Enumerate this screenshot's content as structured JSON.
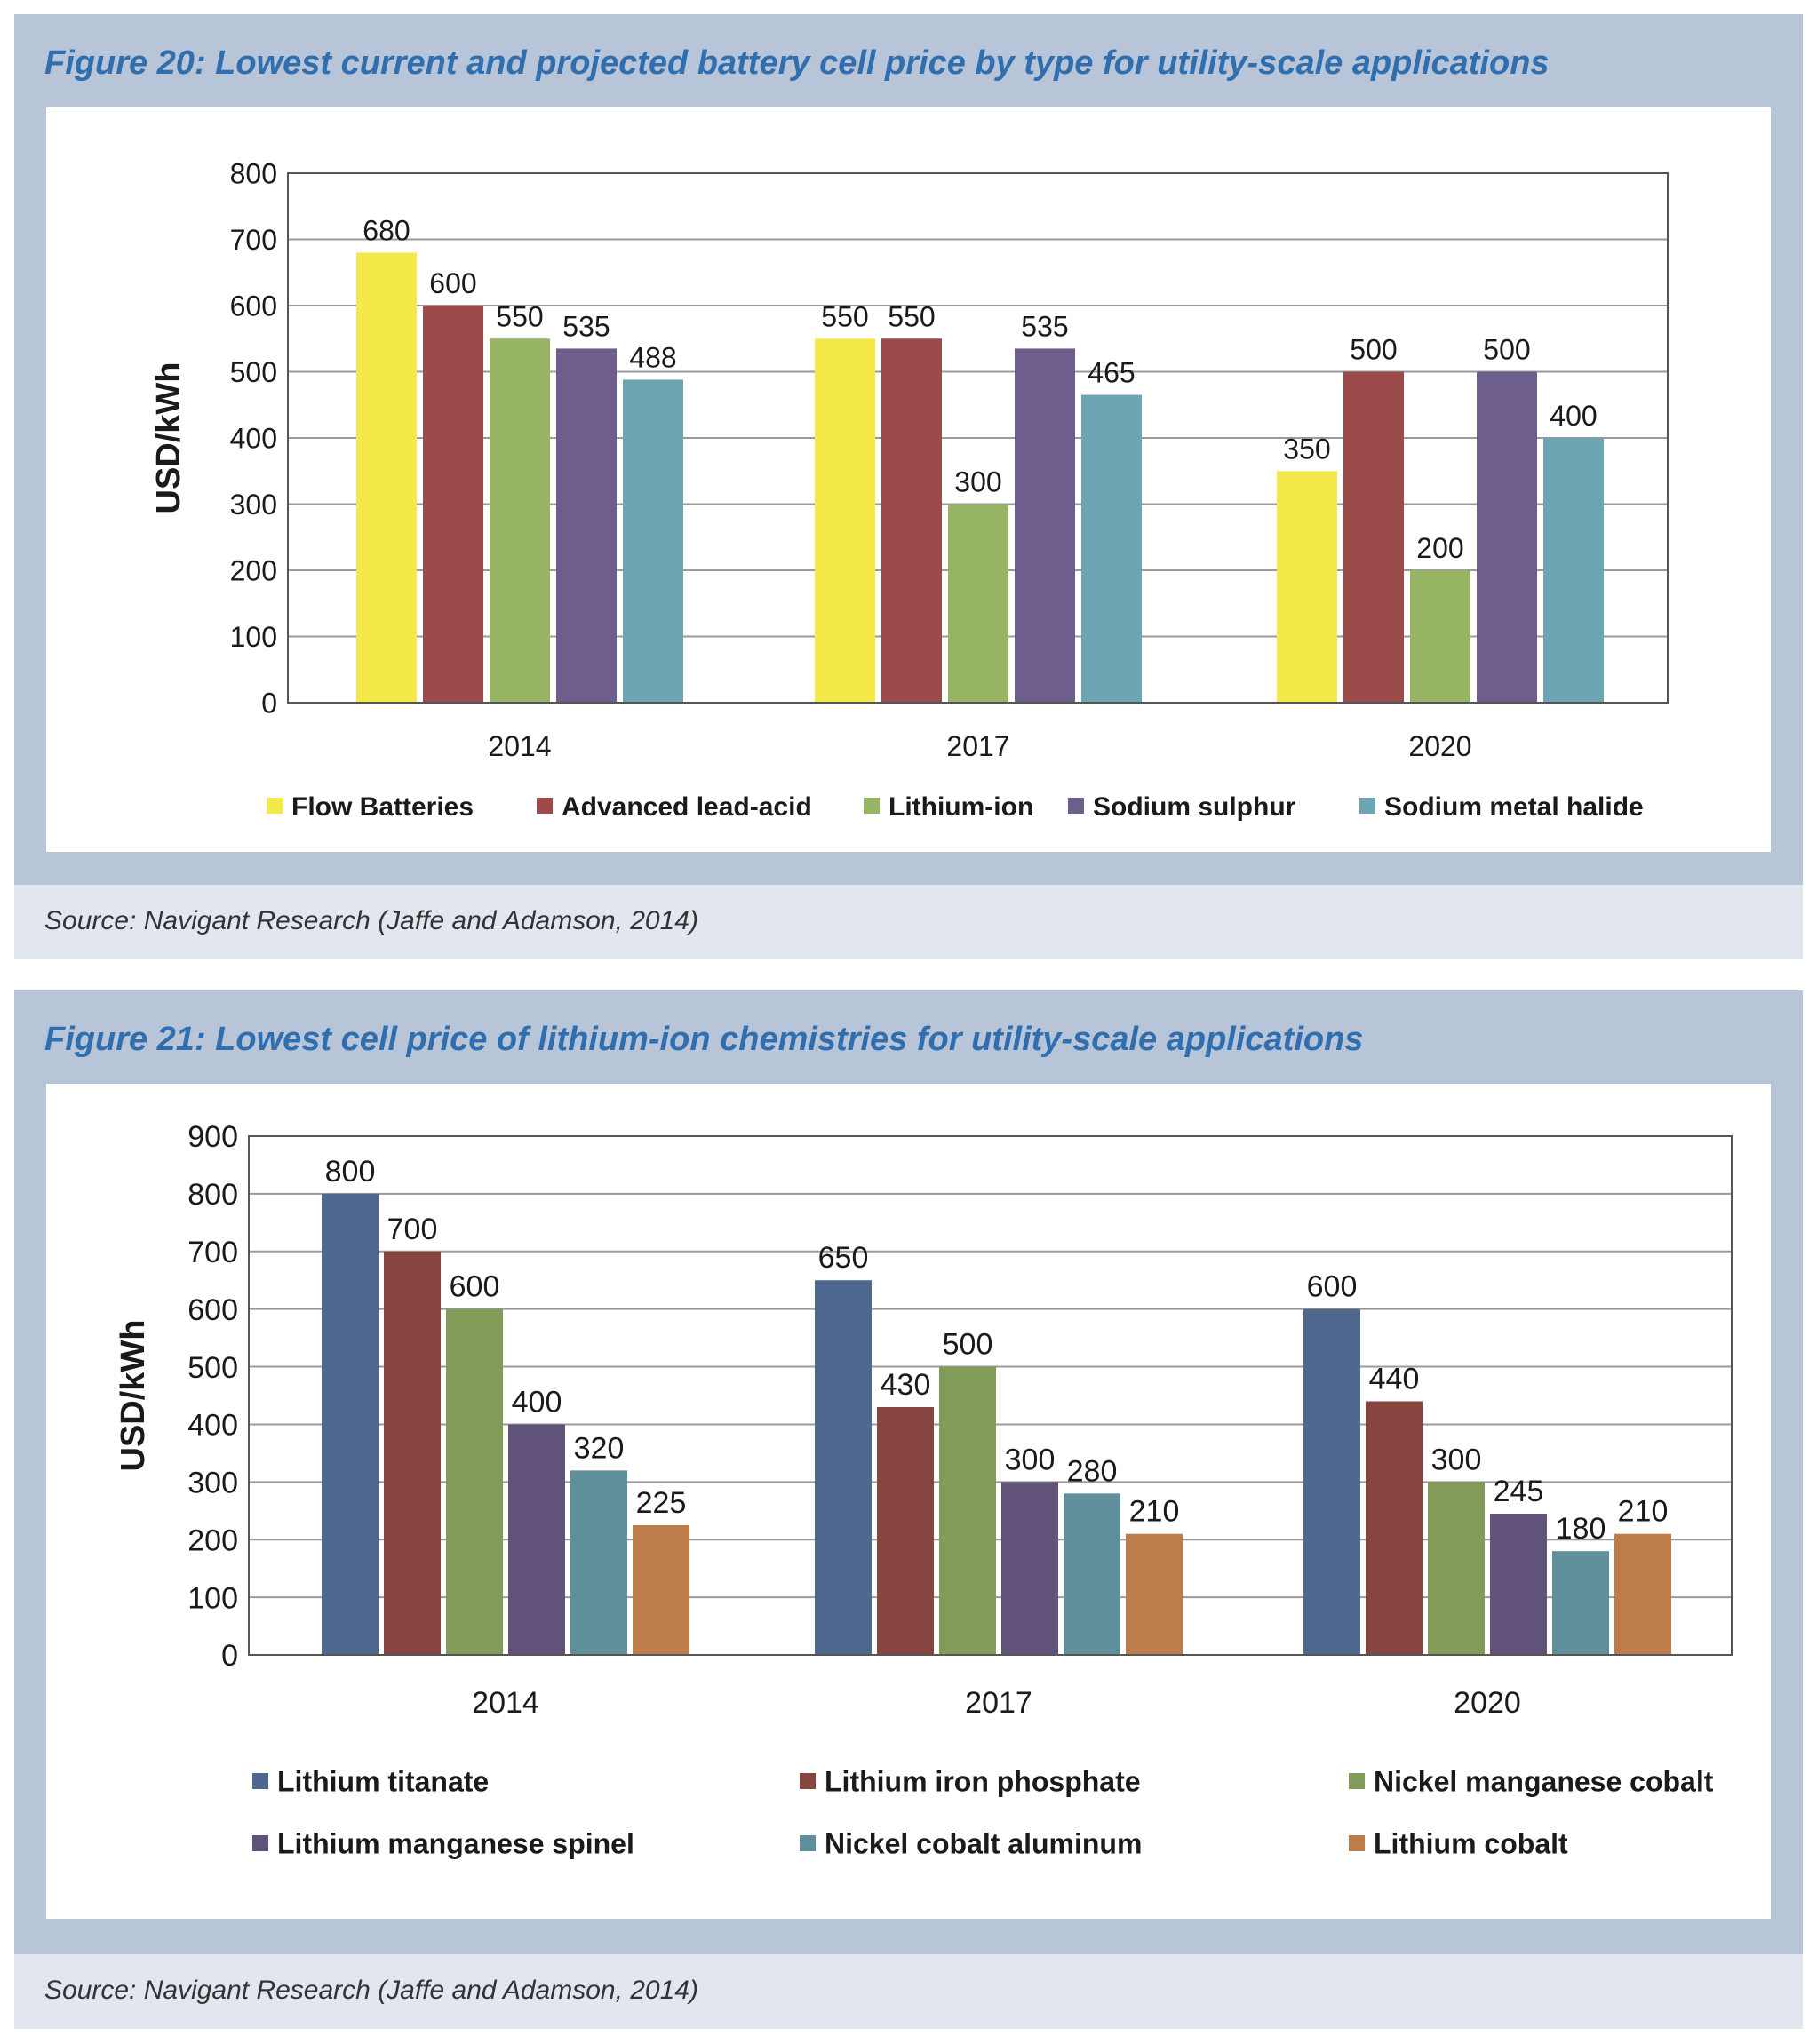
{
  "figures": [
    {
      "title": "Figure 20: Lowest current and projected battery cell price by type for utility-scale applications",
      "source": "Source: Navigant Research (Jaffe and Adamson, 2014)"
    },
    {
      "title": "Figure 21: Lowest cell price of lithium-ion chemistries for utility-scale applications",
      "source": "Source: Navigant Research (Jaffe and Adamson, 2014)"
    }
  ],
  "chart_data": [
    {
      "type": "bar",
      "title": "Figure 20: Lowest current and projected battery cell price by type for utility-scale applications",
      "xlabel": "",
      "ylabel": "USD/kWh",
      "ylim": [
        0,
        800
      ],
      "yticks": [
        0,
        100,
        200,
        300,
        400,
        500,
        600,
        700,
        800
      ],
      "grid": true,
      "legend": "bottom",
      "categories": [
        "2014",
        "2017",
        "2020"
      ],
      "series": [
        {
          "name": "Flow Batteries",
          "color": "#f5e94a",
          "values": [
            680,
            550,
            350
          ]
        },
        {
          "name": "Advanced lead-acid",
          "color": "#9b4c4a",
          "values": [
            600,
            550,
            500
          ]
        },
        {
          "name": "Lithium-ion",
          "color": "#98b465",
          "values": [
            550,
            300,
            200
          ]
        },
        {
          "name": "Sodium sulphur",
          "color": "#6d5e8e",
          "values": [
            535,
            535,
            500
          ]
        },
        {
          "name": "Sodium metal halide",
          "color": "#6ea5b3",
          "values": [
            488,
            465,
            400
          ]
        }
      ]
    },
    {
      "type": "bar",
      "title": "Figure 21: Lowest cell price of lithium-ion chemistries for utility-scale applications",
      "xlabel": "",
      "ylabel": "USD/kWh",
      "ylim": [
        0,
        900
      ],
      "yticks": [
        0,
        100,
        200,
        300,
        400,
        500,
        600,
        700,
        800,
        900
      ],
      "grid": true,
      "legend": "bottom",
      "categories": [
        "2014",
        "2017",
        "2020"
      ],
      "series": [
        {
          "name": "Lithium titanate",
          "color": "#4f6890",
          "values": [
            800,
            650,
            600
          ]
        },
        {
          "name": "Lithium iron phosphate",
          "color": "#874540",
          "values": [
            700,
            430,
            440
          ]
        },
        {
          "name": "Nickel manganese cobalt",
          "color": "#839b58",
          "values": [
            600,
            500,
            300
          ]
        },
        {
          "name": "Lithium manganese spinel",
          "color": "#61527a",
          "values": [
            400,
            300,
            245
          ]
        },
        {
          "name": "Nickel cobalt aluminum",
          "color": "#5e8f9b",
          "values": [
            320,
            280,
            180
          ]
        },
        {
          "name": "Lithium cobalt",
          "color": "#bd7c4a",
          "values": [
            225,
            210,
            210
          ]
        }
      ]
    }
  ]
}
